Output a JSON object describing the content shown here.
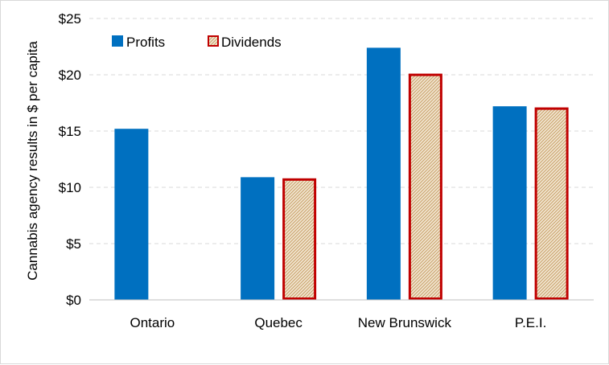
{
  "chart_data": {
    "type": "bar",
    "title": "",
    "xlabel": "",
    "ylabel": "Cannabis agency results in $ per capita",
    "categories": [
      "Ontario",
      "Quebec",
      "New Brunswick",
      "P.E.I."
    ],
    "series": [
      {
        "name": "Profits",
        "values": [
          15.2,
          10.9,
          22.4,
          17.2
        ],
        "color": "#0070c0",
        "pattern": "solid"
      },
      {
        "name": "Dividends",
        "values": [
          null,
          10.8,
          20.1,
          17.1
        ],
        "color": "#c00000",
        "pattern": "hatched-tan"
      }
    ],
    "ylim": [
      0,
      25
    ],
    "yticks": [
      0,
      5,
      10,
      15,
      20,
      25
    ],
    "ytick_labels": [
      "$0",
      "$5",
      "$10",
      "$15",
      "$20",
      "$25"
    ],
    "grid": "horizontal-dashed",
    "legend_position": "top-left"
  }
}
